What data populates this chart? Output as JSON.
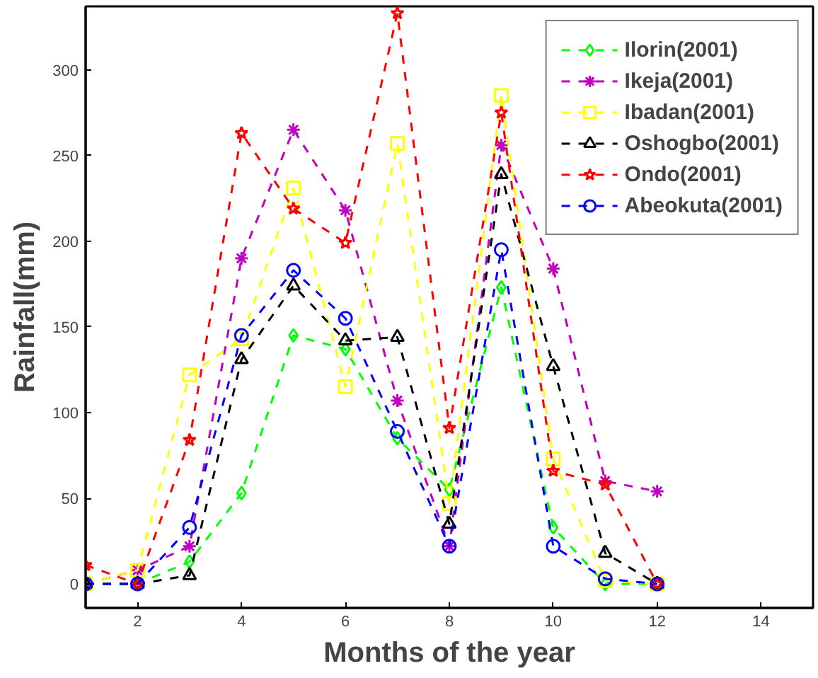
{
  "chart_data": {
    "type": "line",
    "xlabel": "Months of the year",
    "ylabel": "Rainfall(mm)",
    "x": [
      1,
      2,
      3,
      4,
      5,
      6,
      7,
      8,
      9,
      10,
      11,
      12
    ],
    "xlim": [
      1,
      15
    ],
    "ylim": [
      -14,
      337
    ],
    "xticks": [
      2,
      4,
      6,
      8,
      10,
      12,
      14
    ],
    "yticks": [
      0,
      50,
      100,
      150,
      200,
      250,
      300
    ],
    "grid": false,
    "legend": "top right",
    "line_style": "dashed",
    "series": [
      {
        "name": "Ilorin(2001)",
        "color": "#00ff00",
        "marker": "diamond",
        "values": [
          0,
          0,
          13,
          53,
          145,
          137,
          85,
          55,
          173,
          33,
          0,
          0
        ]
      },
      {
        "name": "Ikeja(2001)",
        "color": "#bf00bf",
        "marker": "cross",
        "values": [
          0,
          8,
          22,
          190,
          265,
          218,
          107,
          22,
          256,
          184,
          60,
          54
        ]
      },
      {
        "name": "Ibadan(2001)",
        "color": "#ffff00",
        "marker": "square",
        "values": [
          0,
          8,
          122,
          143,
          231,
          115,
          257,
          47,
          285,
          73,
          2,
          0
        ]
      },
      {
        "name": "Oshogbo(2001)",
        "color": "#000000",
        "marker": "triangle",
        "values": [
          0,
          0,
          5,
          131,
          174,
          142,
          144,
          35,
          239,
          127,
          18,
          0
        ]
      },
      {
        "name": "Ondo(2001)",
        "color": "#ff0000",
        "marker": "star",
        "values": [
          11,
          0,
          84,
          263,
          219,
          199,
          333,
          91,
          275,
          66,
          58,
          0
        ]
      },
      {
        "name": "Abeokuta(2001)",
        "color": "#0000ff",
        "marker": "circle",
        "values": [
          0,
          0,
          33,
          145,
          183,
          155,
          89,
          22,
          195,
          22,
          3,
          0
        ]
      }
    ]
  }
}
